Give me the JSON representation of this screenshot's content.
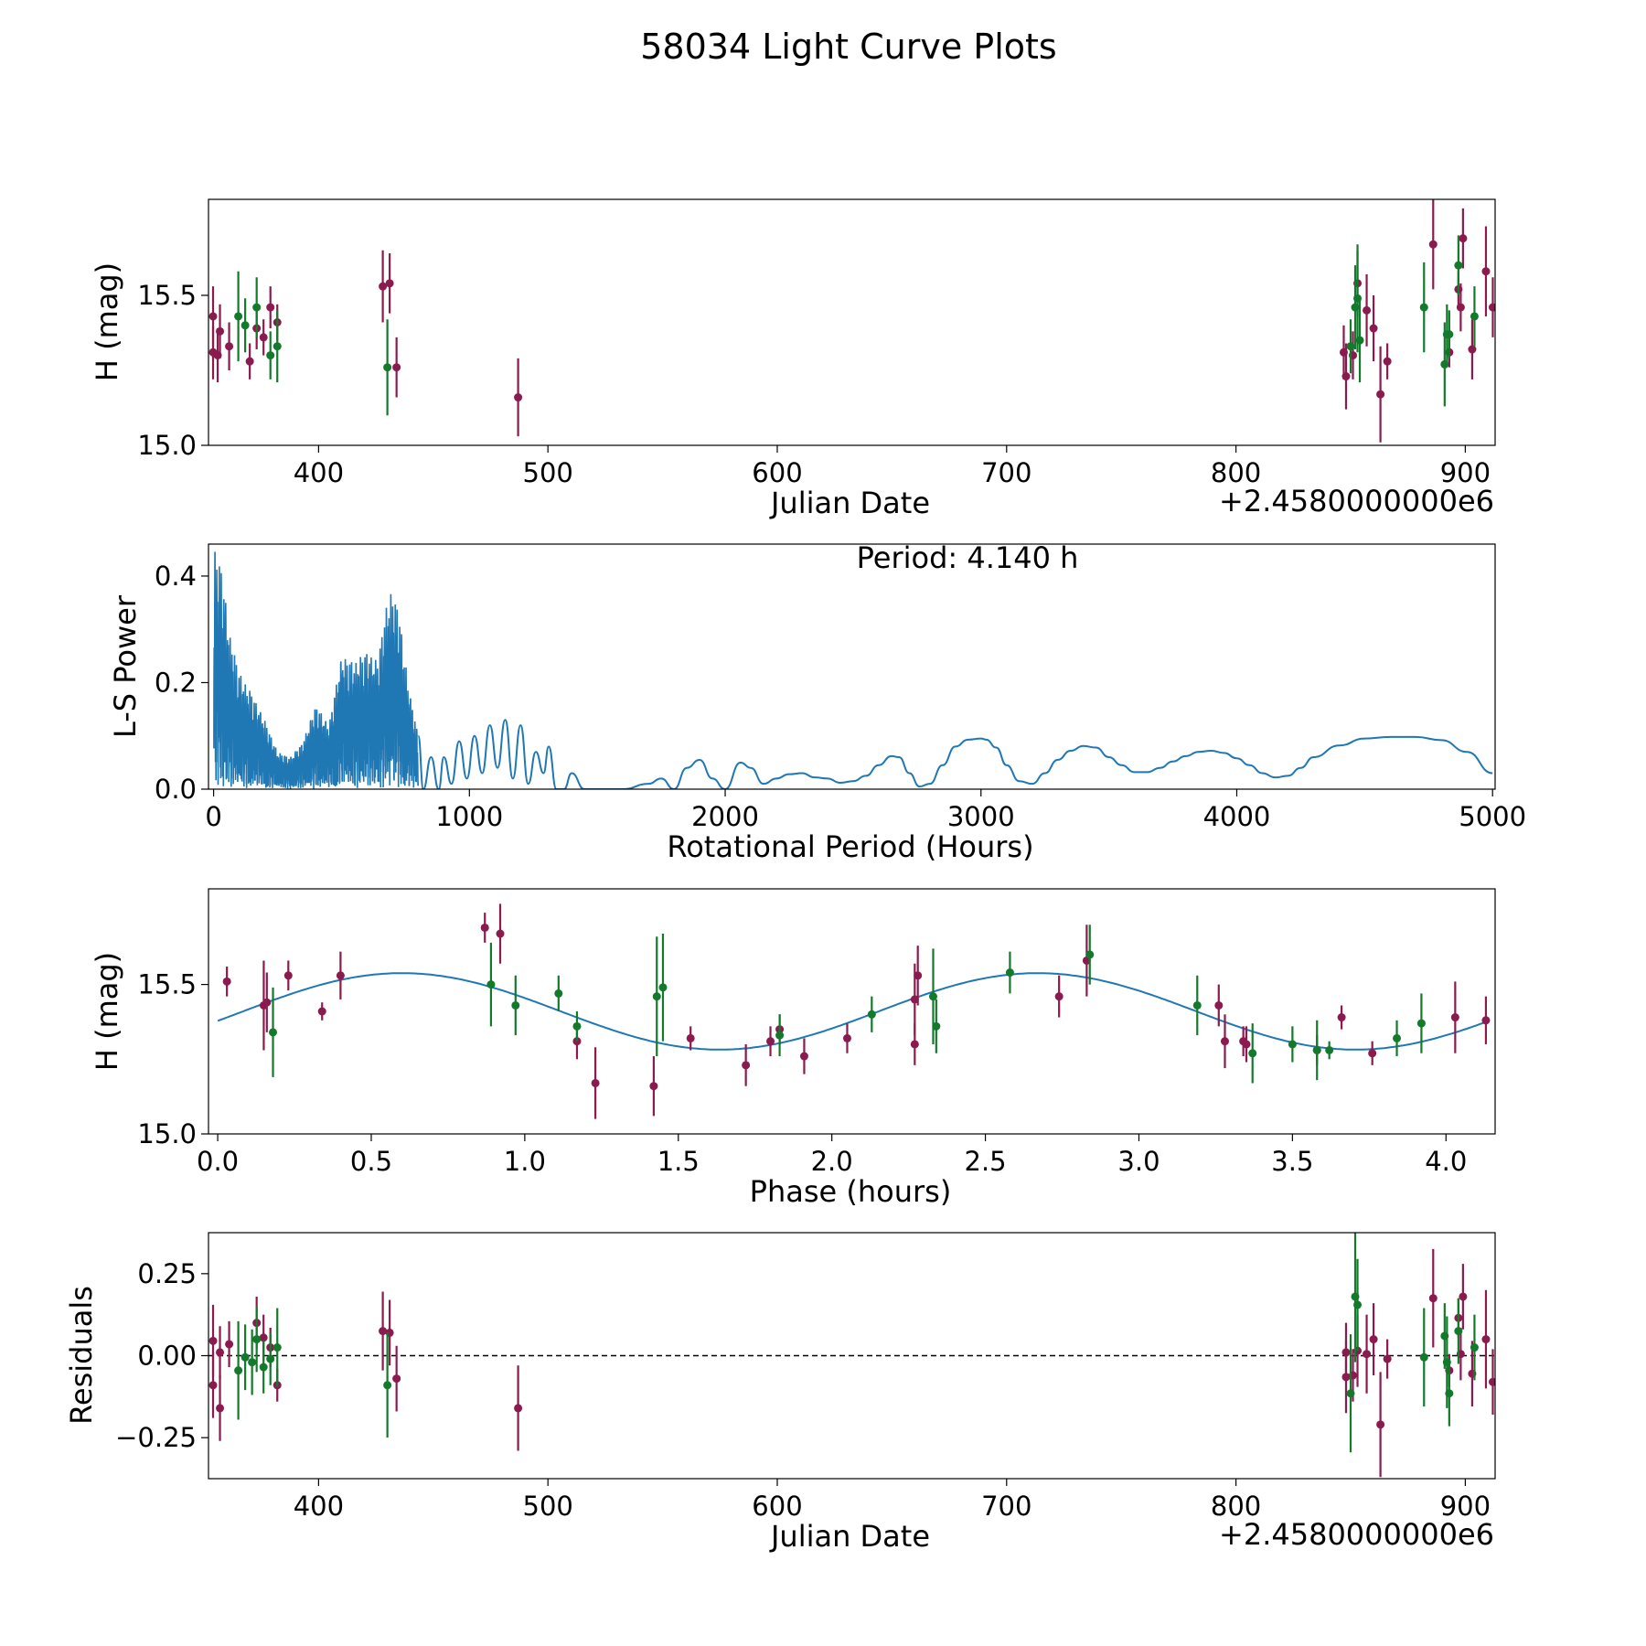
{
  "title": "58034 Light Curve Plots",
  "colors": {
    "r": "#8b1a4e",
    "g": "#137a2c",
    "curve": "#1f77b4",
    "axis": "#000000"
  },
  "chart_data": [
    {
      "type": "scatter",
      "id": "lightcurve",
      "xlabel": "Julian Date",
      "ylabel": "H (mag)",
      "offset_text": "+2.4580000000e6",
      "xlim": [
        352,
        913
      ],
      "ylim": [
        15.0,
        15.82
      ],
      "xticks": [
        "400",
        "500",
        "600",
        "700",
        "800",
        "900"
      ],
      "yticks": [
        "15.0",
        "15.5"
      ],
      "series": [
        {
          "name": "r",
          "color": "#8b1a4e",
          "points": [
            [
              354,
              15.43,
              0.1
            ],
            [
              354,
              15.31,
              0.09
            ],
            [
              356,
              15.3,
              0.09
            ],
            [
              357,
              15.38,
              0.09
            ],
            [
              361,
              15.33,
              0.08
            ],
            [
              370,
              15.28,
              0.06
            ],
            [
              373,
              15.39,
              0.07
            ],
            [
              376,
              15.36,
              0.06
            ],
            [
              379,
              15.46,
              0.07
            ],
            [
              382,
              15.41,
              0.06
            ],
            [
              428,
              15.53,
              0.12
            ],
            [
              431,
              15.54,
              0.1
            ],
            [
              434,
              15.26,
              0.1
            ],
            [
              487,
              15.16,
              0.13
            ],
            [
              847,
              15.31,
              0.09
            ],
            [
              848,
              15.23,
              0.11
            ],
            [
              851,
              15.3,
              0.08
            ],
            [
              853,
              15.54,
              0.11
            ],
            [
              857,
              15.45,
              0.12
            ],
            [
              860,
              15.39,
              0.11
            ],
            [
              863,
              15.17,
              0.16
            ],
            [
              866,
              15.28,
              0.06
            ],
            [
              886,
              15.67,
              0.15
            ],
            [
              893,
              15.31,
              0.05
            ],
            [
              897,
              15.52,
              0.06
            ],
            [
              898,
              15.46,
              0.08
            ],
            [
              899,
              15.69,
              0.1
            ],
            [
              903,
              15.32,
              0.1
            ],
            [
              909,
              15.58,
              0.15
            ],
            [
              912,
              15.46,
              0.1
            ]
          ]
        },
        {
          "name": "g",
          "color": "#137a2c",
          "points": [
            [
              365,
              15.43,
              0.15
            ],
            [
              368,
              15.4,
              0.09
            ],
            [
              373,
              15.46,
              0.1
            ],
            [
              379,
              15.3,
              0.08
            ],
            [
              382,
              15.33,
              0.12
            ],
            [
              430,
              15.26,
              0.16
            ],
            [
              850,
              15.33,
              0.09
            ],
            [
              852,
              15.46,
              0.14
            ],
            [
              853,
              15.49,
              0.18
            ],
            [
              854,
              15.35,
              0.14
            ],
            [
              882,
              15.46,
              0.15
            ],
            [
              891,
              15.27,
              0.14
            ],
            [
              892,
              15.37,
              0.1
            ],
            [
              893,
              15.37,
              0.08
            ],
            [
              897,
              15.6,
              0.1
            ],
            [
              904,
              15.43,
              0.1
            ]
          ]
        }
      ]
    },
    {
      "type": "line",
      "id": "periodogram",
      "xlabel": "Rotational Period (Hours)",
      "ylabel": "L-S Power",
      "annotation": "Period: 4.140 h",
      "xlim": [
        -20,
        5010
      ],
      "ylim": [
        0,
        0.46
      ],
      "xticks": [
        "0",
        "1000",
        "2000",
        "3000",
        "4000",
        "5000"
      ],
      "yticks": [
        "0.0",
        "0.2",
        "0.4"
      ],
      "series": [
        {
          "name": "L-S power",
          "color": "#1f77b4",
          "envelope_x": [
            0,
            30,
            60,
            100,
            150,
            200,
            250,
            300,
            350,
            400,
            450,
            500,
            550,
            600,
            640,
            680,
            700,
            720,
            760,
            800
          ],
          "envelope_y": [
            0.46,
            0.42,
            0.3,
            0.22,
            0.18,
            0.13,
            0.07,
            0.06,
            0.09,
            0.16,
            0.12,
            0.25,
            0.24,
            0.26,
            0.24,
            0.36,
            0.37,
            0.35,
            0.2,
            0.1
          ],
          "x": [
            800,
            820,
            850,
            880,
            900,
            930,
            960,
            990,
            1020,
            1050,
            1080,
            1110,
            1140,
            1170,
            1200,
            1230,
            1260,
            1290,
            1310,
            1340,
            1370,
            1400,
            1450,
            1500,
            1600,
            1700,
            1750,
            1800,
            1850,
            1900,
            1950,
            2000,
            2060,
            2100,
            2150,
            2200,
            2250,
            2300,
            2350,
            2400,
            2450,
            2500,
            2550,
            2600,
            2650,
            2680,
            2720,
            2760,
            2800,
            2850,
            2900,
            2950,
            3000,
            3020,
            3060,
            3100,
            3150,
            3200,
            3250,
            3300,
            3350,
            3400,
            3450,
            3500,
            3550,
            3600,
            3650,
            3700,
            3750,
            3800,
            3850,
            3900,
            3950,
            4000,
            4050,
            4100,
            4150,
            4200,
            4250,
            4300,
            4400,
            4500,
            4600,
            4700,
            4800,
            4900,
            5000
          ],
          "y": [
            0.1,
            0.0,
            0.06,
            0.0,
            0.06,
            0.01,
            0.09,
            0.02,
            0.1,
            0.03,
            0.12,
            0.04,
            0.13,
            0.02,
            0.12,
            0.01,
            0.07,
            0.03,
            0.08,
            0.0,
            0.0,
            0.03,
            0.0,
            0.0,
            0.0,
            0.01,
            0.02,
            0.0,
            0.04,
            0.055,
            0.02,
            0.0,
            0.05,
            0.04,
            0.01,
            0.02,
            0.028,
            0.03,
            0.022,
            0.02,
            0.012,
            0.015,
            0.025,
            0.045,
            0.062,
            0.06,
            0.03,
            0.005,
            0.01,
            0.045,
            0.08,
            0.093,
            0.095,
            0.093,
            0.078,
            0.045,
            0.015,
            0.01,
            0.03,
            0.055,
            0.072,
            0.081,
            0.078,
            0.06,
            0.045,
            0.032,
            0.032,
            0.04,
            0.052,
            0.062,
            0.07,
            0.072,
            0.068,
            0.058,
            0.045,
            0.03,
            0.022,
            0.025,
            0.04,
            0.06,
            0.082,
            0.095,
            0.098,
            0.098,
            0.092,
            0.07,
            0.03
          ]
        }
      ]
    },
    {
      "type": "scatter",
      "id": "phased",
      "xlabel": "Phase (hours)",
      "ylabel": "H (mag)",
      "xlim": [
        -0.03,
        4.16
      ],
      "ylim": [
        15.0,
        15.82
      ],
      "xticks": [
        "0.0",
        "0.5",
        "1.0",
        "1.5",
        "2.0",
        "2.5",
        "3.0",
        "3.5",
        "4.0"
      ],
      "yticks": [
        "15.0",
        "15.5"
      ],
      "model": {
        "color": "#1f77b4",
        "mean": 15.41,
        "amplitude": 0.128,
        "period": 2.07,
        "peak_phase": 0.6
      },
      "series": [
        {
          "name": "r",
          "color": "#8b1a4e",
          "points": [
            [
              0.03,
              15.51,
              0.05
            ],
            [
              0.15,
              15.43,
              0.15
            ],
            [
              0.16,
              15.44,
              0.1
            ],
            [
              0.23,
              15.53,
              0.05
            ],
            [
              0.34,
              15.41,
              0.03
            ],
            [
              0.4,
              15.53,
              0.08
            ],
            [
              0.87,
              15.69,
              0.05
            ],
            [
              0.92,
              15.67,
              0.1
            ],
            [
              1.17,
              15.31,
              0.06
            ],
            [
              1.23,
              15.17,
              0.12
            ],
            [
              1.42,
              15.16,
              0.1
            ],
            [
              1.54,
              15.32,
              0.04
            ],
            [
              1.72,
              15.23,
              0.07
            ],
            [
              1.8,
              15.31,
              0.05
            ],
            [
              1.83,
              15.35,
              0.05
            ],
            [
              1.91,
              15.26,
              0.06
            ],
            [
              2.05,
              15.32,
              0.05
            ],
            [
              2.27,
              15.3,
              0.07
            ],
            [
              2.27,
              15.45,
              0.12
            ],
            [
              2.28,
              15.53,
              0.1
            ],
            [
              2.74,
              15.46,
              0.07
            ],
            [
              2.83,
              15.58,
              0.12
            ],
            [
              3.26,
              15.43,
              0.07
            ],
            [
              3.28,
              15.31,
              0.09
            ],
            [
              3.34,
              15.31,
              0.05
            ],
            [
              3.35,
              15.3,
              0.06
            ],
            [
              3.58,
              15.28,
              0.05
            ],
            [
              3.66,
              15.39,
              0.04
            ],
            [
              3.76,
              15.27,
              0.04
            ],
            [
              4.03,
              15.39,
              0.12
            ],
            [
              4.13,
              15.38,
              0.08
            ]
          ]
        },
        {
          "name": "g",
          "color": "#137a2c",
          "points": [
            [
              0.18,
              15.34,
              0.15
            ],
            [
              0.89,
              15.5,
              0.14
            ],
            [
              0.97,
              15.43,
              0.1
            ],
            [
              1.11,
              15.47,
              0.06
            ],
            [
              1.17,
              15.36,
              0.05
            ],
            [
              1.43,
              15.46,
              0.2
            ],
            [
              1.45,
              15.49,
              0.18
            ],
            [
              1.83,
              15.33,
              0.07
            ],
            [
              2.13,
              15.4,
              0.06
            ],
            [
              2.33,
              15.46,
              0.16
            ],
            [
              2.34,
              15.36,
              0.09
            ],
            [
              2.58,
              15.54,
              0.07
            ],
            [
              2.84,
              15.6,
              0.1
            ],
            [
              3.19,
              15.43,
              0.1
            ],
            [
              3.37,
              15.27,
              0.1
            ],
            [
              3.5,
              15.3,
              0.06
            ],
            [
              3.58,
              15.28,
              0.1
            ],
            [
              3.62,
              15.28,
              0.03
            ],
            [
              3.84,
              15.32,
              0.06
            ],
            [
              3.92,
              15.37,
              0.1
            ]
          ]
        }
      ]
    },
    {
      "type": "scatter",
      "id": "residuals",
      "xlabel": "Julian Date",
      "ylabel": "Residuals",
      "offset_text": "+2.4580000000e6",
      "xlim": [
        352,
        913
      ],
      "ylim": [
        -0.375,
        0.375
      ],
      "xticks": [
        "400",
        "500",
        "600",
        "700",
        "800",
        "900"
      ],
      "yticks": [
        "−0.25",
        "0.00",
        "0.25"
      ],
      "zero_line": true,
      "series": [
        {
          "name": "r",
          "color": "#8b1a4e",
          "points": [
            [
              354,
              0.045,
              0.11
            ],
            [
              354,
              -0.09,
              0.1
            ],
            [
              357,
              -0.16,
              0.1
            ],
            [
              357,
              0.01,
              0.08
            ],
            [
              361,
              0.035,
              0.07
            ],
            [
              373,
              0.1,
              0.08
            ],
            [
              376,
              0.055,
              0.07
            ],
            [
              379,
              0.025,
              0.06
            ],
            [
              382,
              -0.09,
              0.05
            ],
            [
              428,
              0.075,
              0.12
            ],
            [
              431,
              0.07,
              0.1
            ],
            [
              434,
              -0.07,
              0.1
            ],
            [
              487,
              -0.16,
              0.13
            ],
            [
              848,
              0.01,
              0.09
            ],
            [
              848,
              -0.065,
              0.11
            ],
            [
              851,
              -0.06,
              0.08
            ],
            [
              853,
              0.015,
              0.11
            ],
            [
              857,
              0.005,
              0.12
            ],
            [
              860,
              0.05,
              0.11
            ],
            [
              863,
              -0.21,
              0.16
            ],
            [
              866,
              -0.01,
              0.06
            ],
            [
              886,
              0.175,
              0.15
            ],
            [
              893,
              -0.045,
              0.05
            ],
            [
              897,
              0.115,
              0.06
            ],
            [
              898,
              0.005,
              0.08
            ],
            [
              899,
              0.18,
              0.1
            ],
            [
              903,
              -0.055,
              0.1
            ],
            [
              909,
              0.05,
              0.15
            ],
            [
              912,
              -0.08,
              0.1
            ]
          ]
        },
        {
          "name": "g",
          "color": "#137a2c",
          "points": [
            [
              365,
              -0.045,
              0.15
            ],
            [
              368,
              -0.005,
              0.1
            ],
            [
              371,
              -0.02,
              0.1
            ],
            [
              373,
              0.05,
              0.1
            ],
            [
              376,
              -0.035,
              0.08
            ],
            [
              379,
              -0.01,
              0.08
            ],
            [
              382,
              0.025,
              0.12
            ],
            [
              430,
              -0.09,
              0.16
            ],
            [
              850,
              -0.115,
              0.18
            ],
            [
              852,
              0.18,
              0.2
            ],
            [
              853,
              0.155,
              0.14
            ],
            [
              882,
              -0.005,
              0.15
            ],
            [
              891,
              0.06,
              0.1
            ],
            [
              892,
              -0.02,
              0.14
            ],
            [
              893,
              -0.115,
              0.1
            ],
            [
              897,
              0.075,
              0.1
            ],
            [
              904,
              0.025,
              0.1
            ]
          ]
        }
      ]
    }
  ]
}
